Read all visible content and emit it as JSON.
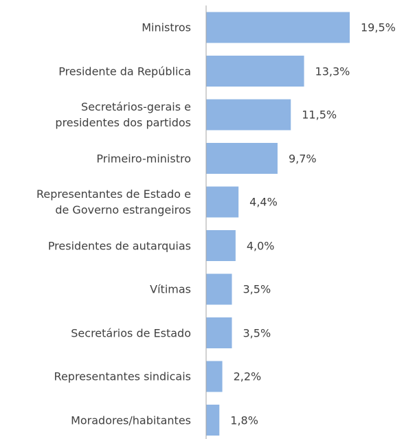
{
  "chart_data": {
    "type": "bar",
    "orientation": "horizontal",
    "categories": [
      "Ministros",
      "Presidente da República",
      "Secretários-gerais e\npresidentes dos partidos",
      "Primeiro-ministro",
      "Representantes de Estado e\nde Governo estrangeiros",
      "Presidentes de autarquias",
      "Vítimas",
      "Secretários de Estado",
      "Representantes sindicais",
      "Moradores/habitantes"
    ],
    "values": [
      19.5,
      13.3,
      11.5,
      9.7,
      4.4,
      4.0,
      3.5,
      3.5,
      2.2,
      1.8
    ],
    "value_labels": [
      "19,5%",
      "13,3%",
      "11,5%",
      "9,7%",
      "4,4%",
      "4,0%",
      "3,5%",
      "3,5%",
      "2,2%",
      "1,8%"
    ],
    "color": "#8eb4e3"
  }
}
